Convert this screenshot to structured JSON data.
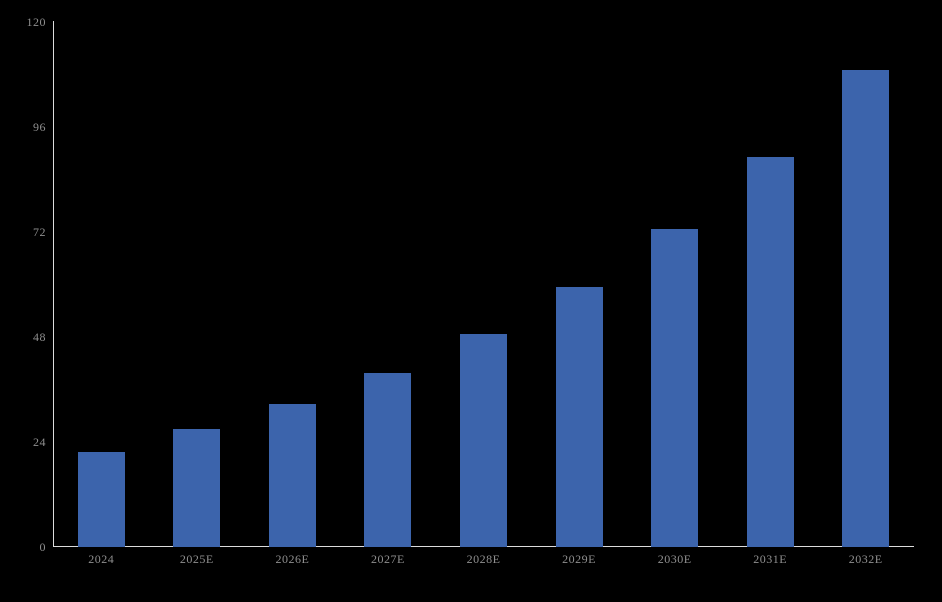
{
  "chart_data": {
    "type": "bar",
    "title": "",
    "xlabel": "",
    "ylabel": "",
    "categories": [
      "2024",
      "2025E",
      "2026E",
      "2027E",
      "2028E",
      "2029E",
      "2030E",
      "2031E",
      "2032E"
    ],
    "values": [
      21.7,
      26.8,
      32.5,
      39.6,
      48.5,
      59.3,
      72.5,
      89.0,
      108.9
    ],
    "ylim": [
      0,
      120
    ],
    "yticks": [
      0,
      24,
      48,
      72,
      96,
      120
    ],
    "grid": false,
    "legend_position": "none",
    "colors": {
      "bar": "#3C64AC",
      "axis": "#DCDCDC",
      "tick_label": "#8F8F8F",
      "background": "#000000"
    }
  }
}
